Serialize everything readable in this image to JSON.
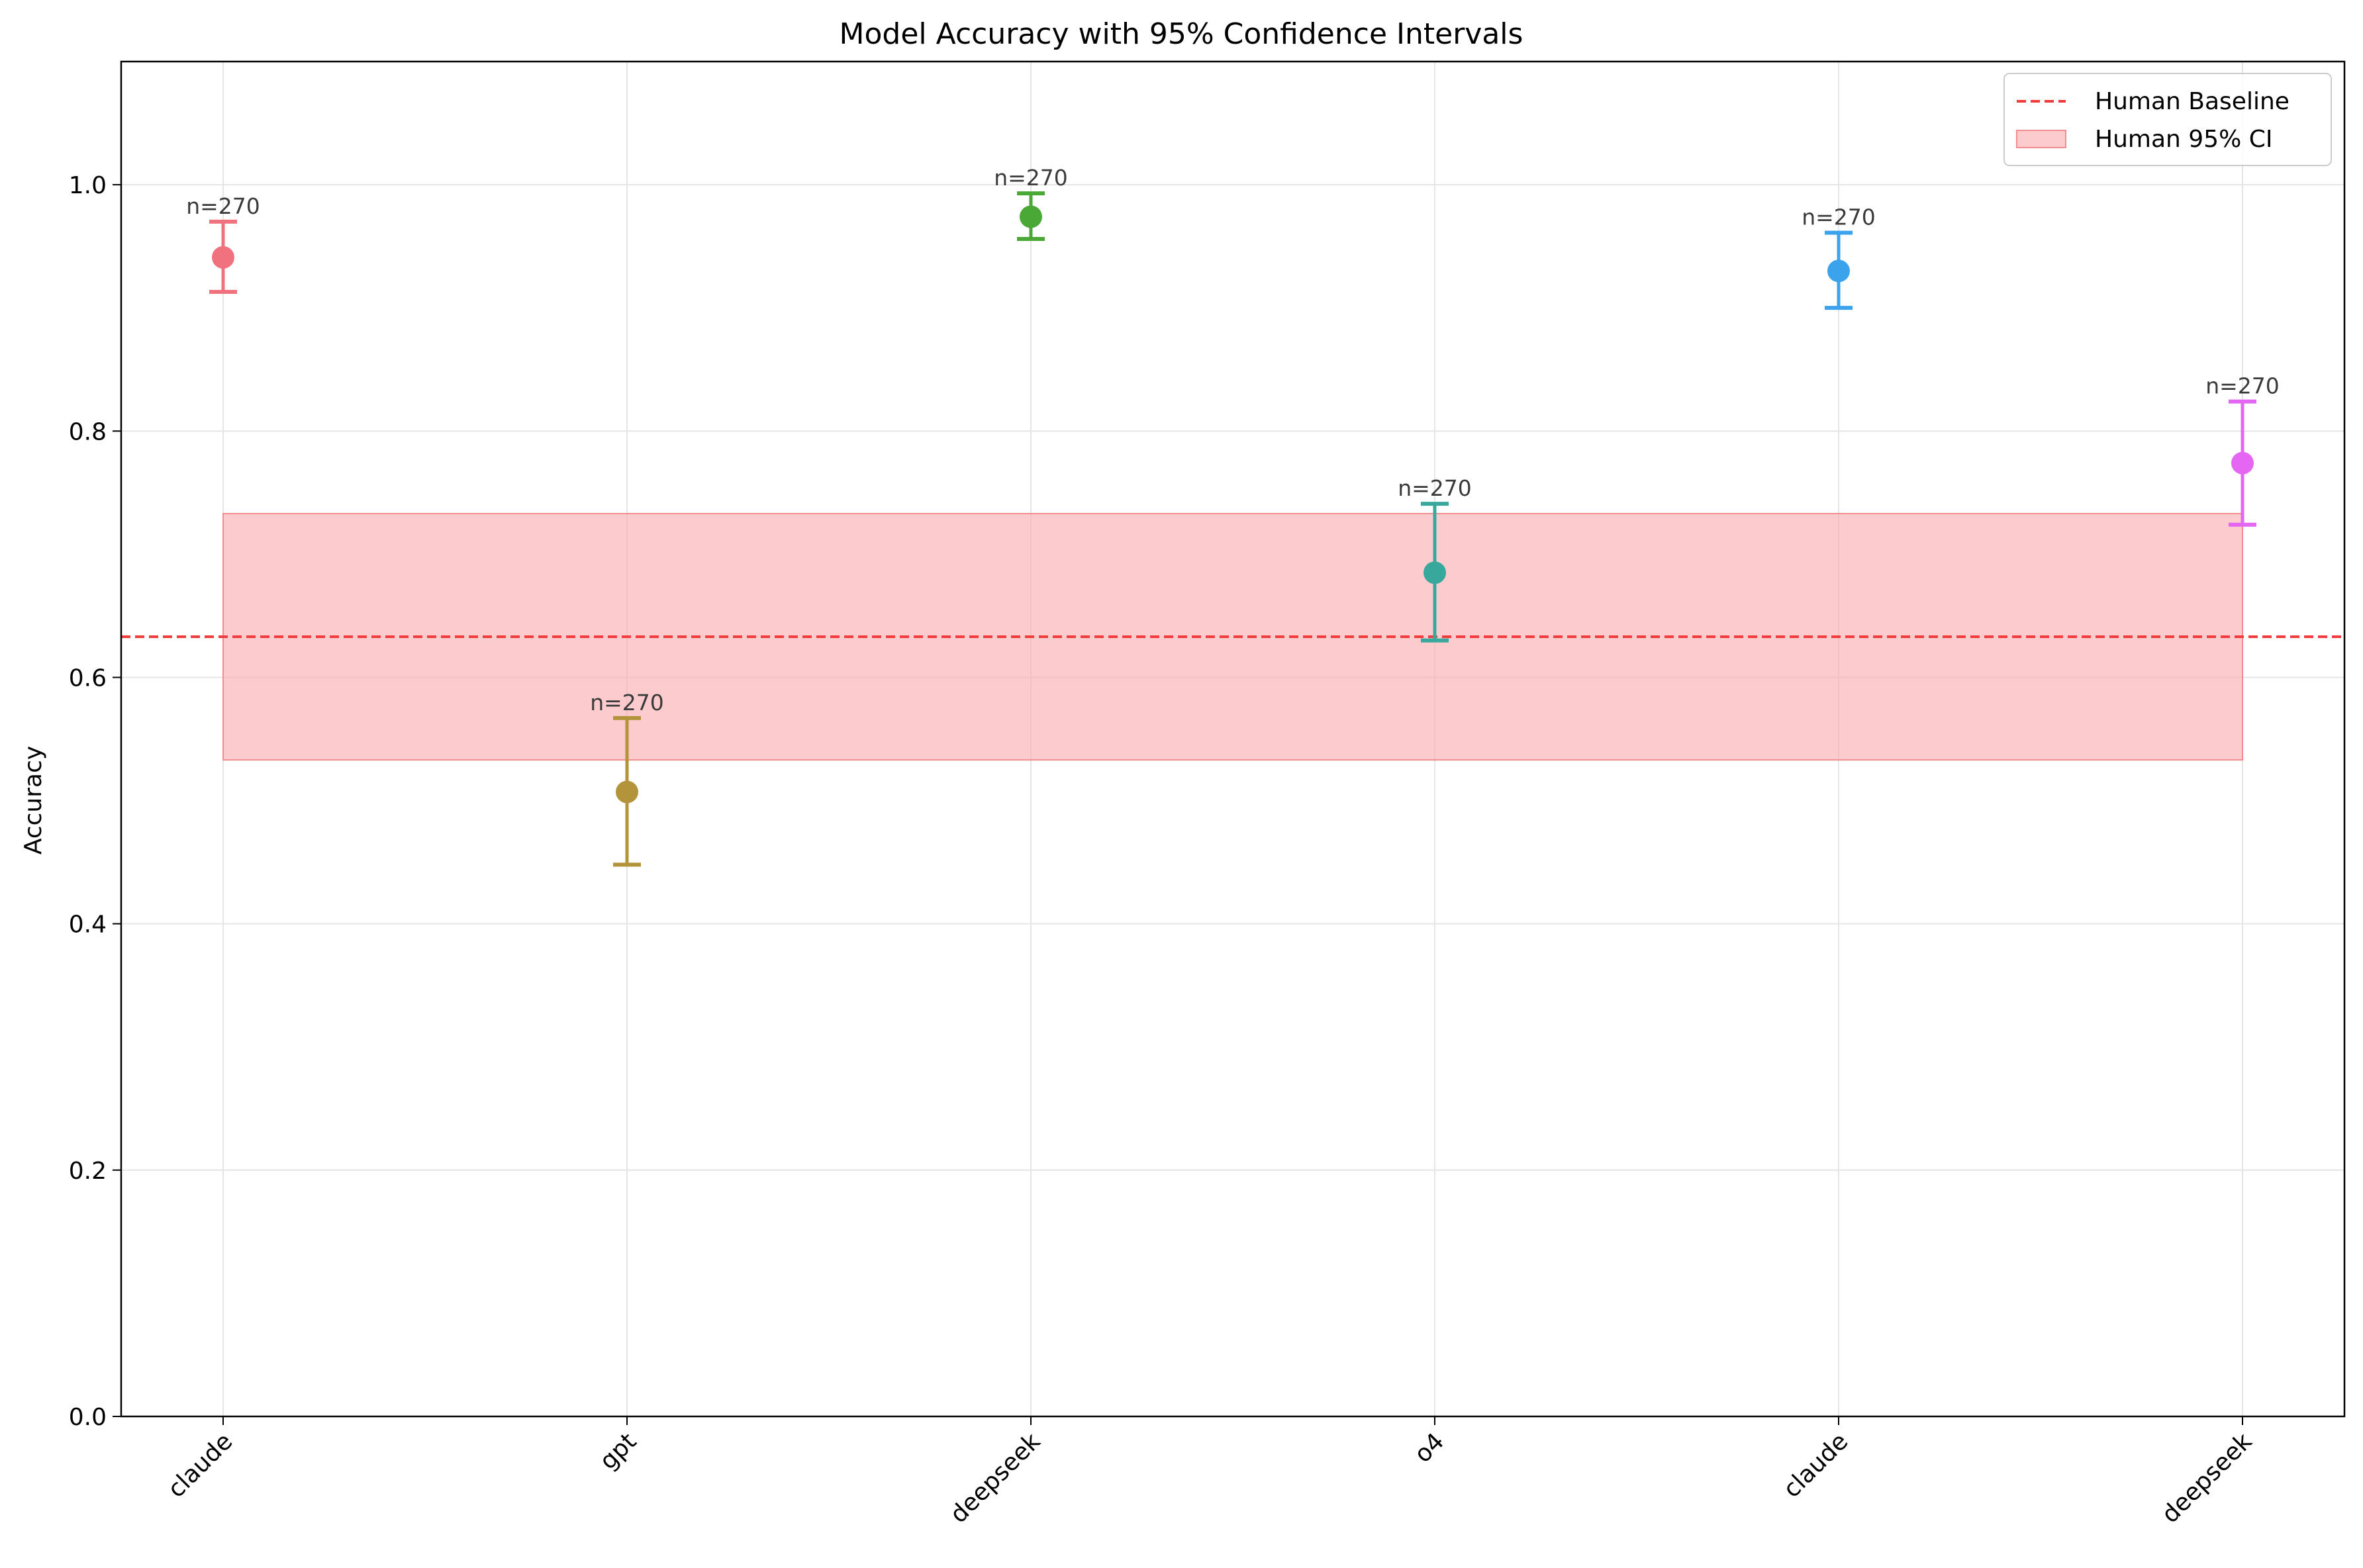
{
  "chart_data": {
    "type": "scatter",
    "title": "Model Accuracy with 95% Confidence Intervals",
    "xlabel": "",
    "ylabel": "Accuracy",
    "ylim": [
      0,
      1.1
    ],
    "yticks": [
      "0.0",
      "0.2",
      "0.4",
      "0.6",
      "0.8",
      "1.0"
    ],
    "ytick_values": [
      0,
      0.2,
      0.4,
      0.6,
      0.8,
      1.0
    ],
    "grid": true,
    "legend_position": "top-right",
    "categories": [
      "claude",
      "gpt",
      "deepseek",
      "o4",
      "claude",
      "deepseek"
    ],
    "points": [
      {
        "label": "claude",
        "value": 0.941,
        "ci_low": 0.913,
        "ci_high": 0.97,
        "n_label": "n=270",
        "color": "#f0727f"
      },
      {
        "label": "gpt",
        "value": 0.507,
        "ci_low": 0.448,
        "ci_high": 0.567,
        "n_label": "n=270",
        "color": "#b3943a"
      },
      {
        "label": "deepseek",
        "value": 0.974,
        "ci_low": 0.956,
        "ci_high": 0.993,
        "n_label": "n=270",
        "color": "#4aa837"
      },
      {
        "label": "o4",
        "value": 0.685,
        "ci_low": 0.63,
        "ci_high": 0.741,
        "n_label": "n=270",
        "color": "#38a89d"
      },
      {
        "label": "claude",
        "value": 0.93,
        "ci_low": 0.9,
        "ci_high": 0.961,
        "n_label": "n=270",
        "color": "#3ba3ec"
      },
      {
        "label": "deepseek",
        "value": 0.774,
        "ci_low": 0.724,
        "ci_high": 0.824,
        "n_label": "n=270",
        "color": "#e466f3"
      }
    ],
    "human_baseline": {
      "value": 0.633,
      "ci_low": 0.533,
      "ci_high": 0.733,
      "line_color": "#f03c3c",
      "band_color": "#f8a9ab"
    },
    "legend": [
      "Human Baseline",
      "Human 95% CI"
    ]
  }
}
